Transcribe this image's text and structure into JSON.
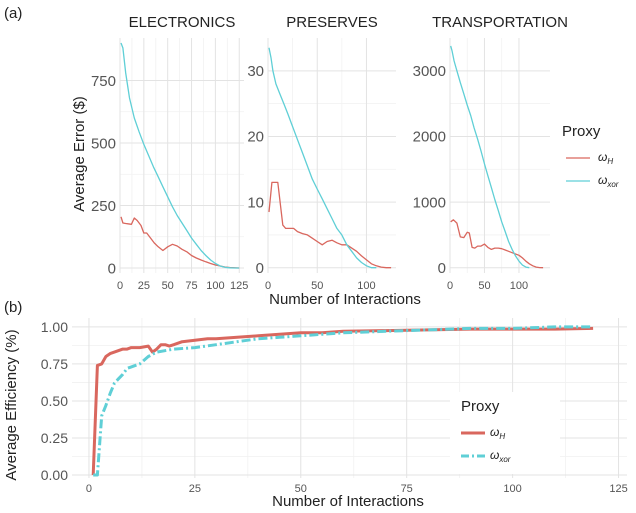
{
  "panel_labels": {
    "a": "(a)",
    "b": "(b)"
  },
  "colors": {
    "omega_h": "#d9675e",
    "omega_xor": "#5fcfd6",
    "grid_major": "#e3e3e3",
    "grid_minor": "#f1f1f1",
    "text": "#222222",
    "tick": "#555555"
  },
  "chart_data": [
    {
      "type": "line",
      "panel": "a",
      "title": "ELECTRONICS",
      "xlabel": "Number of Interactions",
      "ylabel": "Average Error ($)",
      "xlim": [
        0,
        130
      ],
      "ylim": [
        -20,
        920
      ],
      "xticks": [
        0,
        25,
        50,
        75,
        100,
        125
      ],
      "xtick_labels": [
        "0",
        "25",
        "50",
        "75",
        "100",
        "125"
      ],
      "yticks": [
        0,
        250,
        500,
        750
      ],
      "ytick_labels": [
        "0",
        "250",
        "500",
        "750"
      ],
      "series": [
        {
          "key": "omega_h",
          "x": [
            1,
            3,
            6,
            12,
            15,
            18,
            22,
            25,
            28,
            32,
            36,
            40,
            45,
            50,
            55,
            60,
            65,
            70,
            75,
            80,
            85,
            90,
            95,
            100,
            105,
            110,
            115,
            120,
            125
          ],
          "y": [
            205,
            180,
            178,
            175,
            200,
            190,
            170,
            140,
            140,
            120,
            100,
            85,
            70,
            85,
            95,
            88,
            75,
            65,
            50,
            40,
            32,
            25,
            18,
            12,
            8,
            4,
            2,
            1,
            0
          ]
        },
        {
          "key": "omega_xor",
          "x": [
            1,
            3,
            6,
            10,
            15,
            20,
            25,
            30,
            35,
            40,
            45,
            50,
            55,
            60,
            65,
            70,
            75,
            80,
            85,
            90,
            95,
            100,
            105,
            110,
            115,
            120,
            125
          ],
          "y": [
            900,
            880,
            780,
            680,
            600,
            545,
            495,
            450,
            405,
            365,
            325,
            285,
            245,
            210,
            180,
            150,
            120,
            95,
            70,
            50,
            32,
            18,
            8,
            3,
            1,
            0,
            0
          ]
        }
      ]
    },
    {
      "type": "line",
      "panel": "a",
      "title": "PRESERVES",
      "xlabel": "Number of Interactions",
      "ylabel": "",
      "xlim": [
        0,
        130
      ],
      "ylim": [
        -0.8,
        35
      ],
      "xticks": [
        0,
        50,
        100
      ],
      "xtick_labels": [
        "0",
        "50",
        "100"
      ],
      "yticks": [
        0,
        10,
        20,
        30
      ],
      "ytick_labels": [
        "0",
        "10",
        "20",
        "30"
      ],
      "series": [
        {
          "key": "omega_h",
          "x": [
            1,
            4,
            7,
            10,
            15,
            18,
            22,
            26,
            30,
            35,
            40,
            45,
            50,
            55,
            60,
            65,
            70,
            75,
            80,
            85,
            90,
            95,
            100,
            105,
            110,
            115,
            120,
            125
          ],
          "y": [
            8.5,
            13,
            13,
            13,
            6.5,
            6,
            6,
            6,
            5.5,
            5.2,
            5,
            4.5,
            4,
            3.5,
            4,
            4.2,
            3.8,
            3.5,
            3.5,
            3,
            2.5,
            1.8,
            1.2,
            0.6,
            0.3,
            0.1,
            0,
            0
          ]
        },
        {
          "key": "omega_xor",
          "x": [
            1,
            3,
            5,
            8,
            12,
            16,
            20,
            25,
            30,
            35,
            40,
            45,
            50,
            55,
            60,
            65,
            70,
            75,
            80,
            85,
            90,
            95,
            100,
            105,
            110
          ],
          "y": [
            33.5,
            32,
            30,
            28,
            26.5,
            25,
            23.5,
            21.5,
            19.5,
            17.5,
            15.5,
            13.5,
            12,
            10.5,
            9,
            7.5,
            6,
            5,
            3.5,
            2.5,
            1.5,
            0.8,
            0.3,
            0,
            0
          ]
        }
      ]
    },
    {
      "type": "line",
      "panel": "a",
      "title": "TRANSPORTATION",
      "xlabel": "Number of Interactions",
      "ylabel": "",
      "xlim": [
        0,
        145
      ],
      "ylim": [
        -80,
        3500
      ],
      "xticks": [
        0,
        50,
        100
      ],
      "xtick_labels": [
        "0",
        "50",
        "100"
      ],
      "yticks": [
        0,
        1000,
        2000,
        3000
      ],
      "ytick_labels": [
        "0",
        "1000",
        "2000",
        "3000"
      ],
      "series": [
        {
          "key": "omega_h",
          "x": [
            1,
            5,
            10,
            15,
            20,
            25,
            28,
            32,
            36,
            40,
            45,
            50,
            55,
            60,
            65,
            70,
            75,
            80,
            85,
            90,
            95,
            100,
            105,
            110,
            115,
            120,
            125,
            130,
            135
          ],
          "y": [
            700,
            730,
            680,
            470,
            460,
            540,
            530,
            310,
            300,
            330,
            330,
            360,
            310,
            280,
            300,
            300,
            290,
            270,
            250,
            230,
            210,
            190,
            150,
            100,
            60,
            30,
            10,
            2,
            0
          ]
        },
        {
          "key": "omega_xor",
          "x": [
            1,
            3,
            6,
            10,
            15,
            20,
            25,
            30,
            35,
            40,
            45,
            50,
            55,
            60,
            65,
            70,
            75,
            80,
            85,
            90,
            95,
            100,
            105,
            110,
            115
          ],
          "y": [
            3380,
            3300,
            3150,
            3000,
            2820,
            2650,
            2480,
            2320,
            2130,
            1960,
            1780,
            1580,
            1400,
            1220,
            1040,
            870,
            700,
            550,
            400,
            280,
            180,
            100,
            40,
            10,
            0
          ]
        }
      ]
    },
    {
      "type": "line",
      "panel": "b",
      "title": "",
      "xlabel": "Number of Interactions",
      "ylabel": "Average Efficiency (%)",
      "xlim": [
        -4,
        127
      ],
      "ylim": [
        -0.02,
        1.06
      ],
      "xticks": [
        0,
        25,
        50,
        75,
        100,
        125
      ],
      "xtick_labels": [
        "0",
        "25",
        "50",
        "75",
        "100",
        "125"
      ],
      "yticks": [
        0,
        0.25,
        0.5,
        0.75,
        1.0
      ],
      "ytick_labels": [
        "0.00",
        "0.25",
        "0.50",
        "0.75",
        "1.00"
      ],
      "series": [
        {
          "key": "omega_h",
          "dash": "solid",
          "x": [
            1,
            2,
            3,
            4,
            5,
            6,
            7,
            8,
            9,
            10,
            12,
            14,
            15,
            16,
            17,
            18,
            19,
            20,
            22,
            25,
            28,
            30,
            35,
            40,
            45,
            50,
            55,
            60,
            70,
            80,
            90,
            100,
            110,
            119
          ],
          "y": [
            0,
            0.74,
            0.75,
            0.8,
            0.82,
            0.83,
            0.84,
            0.85,
            0.85,
            0.86,
            0.86,
            0.87,
            0.83,
            0.85,
            0.88,
            0.88,
            0.87,
            0.88,
            0.9,
            0.91,
            0.92,
            0.92,
            0.93,
            0.94,
            0.95,
            0.96,
            0.96,
            0.97,
            0.975,
            0.98,
            0.985,
            0.985,
            0.985,
            0.99
          ]
        },
        {
          "key": "omega_xor",
          "dash": "dashdot",
          "x": [
            1,
            2,
            3,
            4,
            5,
            6,
            7,
            8,
            9,
            10,
            12,
            14,
            16,
            20,
            25,
            30,
            35,
            40,
            45,
            50,
            55,
            60,
            70,
            80,
            90,
            100,
            110,
            119
          ],
          "y": [
            0,
            0,
            0.4,
            0.47,
            0.55,
            0.62,
            0.65,
            0.68,
            0.72,
            0.73,
            0.75,
            0.8,
            0.83,
            0.85,
            0.86,
            0.88,
            0.9,
            0.92,
            0.93,
            0.94,
            0.95,
            0.96,
            0.97,
            0.98,
            0.99,
            0.99,
            1.0,
            1.0
          ]
        }
      ]
    }
  ],
  "legend_a": {
    "title": "Proxy",
    "placement": "right",
    "items": [
      {
        "key": "omega_h",
        "symbol": "ω",
        "sub": "H"
      },
      {
        "key": "omega_xor",
        "symbol": "ω",
        "sub": "xor"
      }
    ]
  },
  "legend_b": {
    "title": "Proxy",
    "placement": "right-middle",
    "items": [
      {
        "key": "omega_h",
        "symbol": "ω",
        "sub": "H"
      },
      {
        "key": "omega_xor",
        "symbol": "ω",
        "sub": "xor"
      }
    ]
  }
}
